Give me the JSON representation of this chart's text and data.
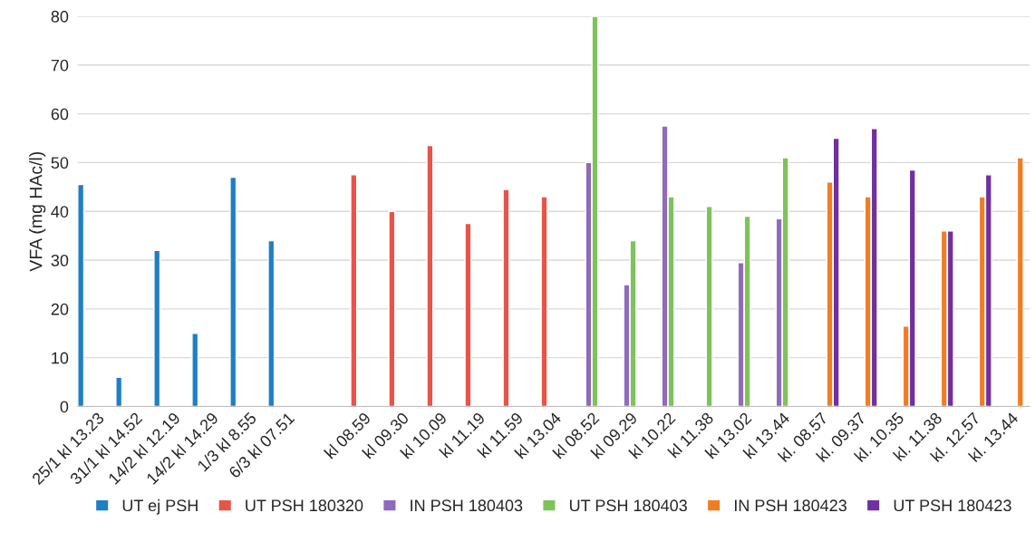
{
  "chart_data": {
    "type": "bar",
    "ylabel": "VFA (mg HAc/l)",
    "categories": [
      "25/1 kl 13.23",
      "31/1 kl 14.52",
      "14/2 kl 12.19",
      "14/2 kl 14.29",
      "1/3 kl 8.55",
      "6/3 kl 07.51",
      null,
      "kl 08.59",
      "kl 09.30",
      "kl 10.09",
      "kl 11.19",
      "kl 11.59",
      "kl 13.04",
      "kl 08.52",
      "kl 09.29",
      "kl 10.22",
      "kl 11.38",
      "kl 13.02",
      "kl 13.44",
      "kl. 08.57",
      "kl. 09.37",
      "kl. 10.35",
      "kl. 11.38",
      "kl. 12.57",
      "kl. 13.44"
    ],
    "series": [
      {
        "name": "UT ej PSH",
        "color": "#1f7fc4",
        "values": [
          45.5,
          6,
          32,
          15,
          47,
          34,
          null,
          null,
          null,
          null,
          null,
          null,
          null,
          null,
          null,
          null,
          null,
          null,
          null,
          null,
          null,
          null,
          null,
          null,
          null
        ]
      },
      {
        "name": "UT PSH 180320",
        "color": "#e8534a",
        "values": [
          null,
          null,
          null,
          null,
          null,
          null,
          null,
          47.5,
          40,
          53.5,
          37.5,
          44.5,
          43,
          null,
          null,
          null,
          null,
          null,
          null,
          null,
          null,
          null,
          null,
          null,
          null
        ]
      },
      {
        "name": "IN PSH 180403",
        "color": "#8e6bbd",
        "values": [
          null,
          null,
          null,
          null,
          null,
          null,
          null,
          null,
          null,
          null,
          null,
          null,
          null,
          50,
          25,
          57.5,
          null,
          29.5,
          38.5,
          null,
          null,
          null,
          null,
          null,
          null
        ]
      },
      {
        "name": "UT PSH 180403",
        "color": "#7dc35a",
        "values": [
          null,
          null,
          null,
          null,
          null,
          null,
          null,
          null,
          null,
          null,
          null,
          null,
          null,
          80,
          34,
          43,
          41,
          39,
          51,
          null,
          null,
          null,
          null,
          null,
          null
        ]
      },
      {
        "name": "IN PSH 180423",
        "color": "#f07d22",
        "values": [
          null,
          null,
          null,
          null,
          null,
          null,
          null,
          null,
          null,
          null,
          null,
          null,
          null,
          null,
          null,
          null,
          null,
          null,
          null,
          46,
          43,
          16.5,
          36,
          43,
          51
        ]
      },
      {
        "name": "UT PSH 180423",
        "color": "#7030a0",
        "values": [
          null,
          null,
          null,
          null,
          null,
          null,
          null,
          null,
          null,
          null,
          null,
          null,
          null,
          null,
          null,
          null,
          null,
          null,
          null,
          55,
          57,
          48.5,
          36,
          47.5,
          null
        ]
      }
    ],
    "ylim": [
      0,
      80
    ],
    "yticks": [
      0,
      10,
      20,
      30,
      40,
      50,
      60,
      70,
      80
    ],
    "grid": "y",
    "legend": "bottom"
  }
}
